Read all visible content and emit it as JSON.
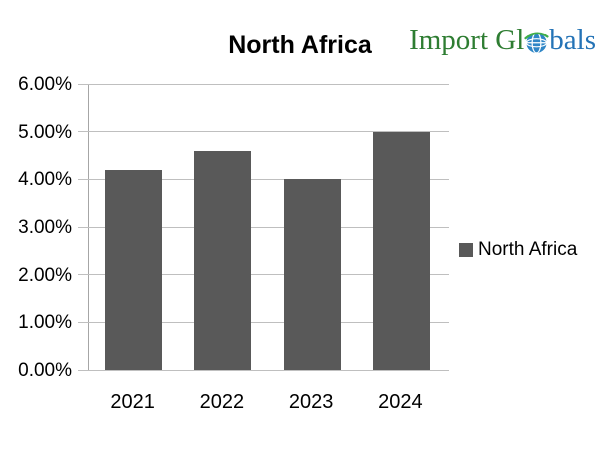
{
  "header": {
    "logo": {
      "text_before_globe": "Import Gl",
      "text_after_globe": "bals",
      "green_color": "#2e7d32",
      "blue_color": "#2473b6"
    }
  },
  "chart_data": {
    "type": "bar",
    "title": "North Africa",
    "categories": [
      "2021",
      "2022",
      "2023",
      "2024"
    ],
    "series": [
      {
        "name": "North Africa",
        "values": [
          4.2,
          4.6,
          4.0,
          5.0
        ]
      }
    ],
    "value_unit": "%",
    "ylim": [
      0,
      6
    ],
    "ytick_step": 1,
    "ytick_labels": [
      "0.00%",
      "1.00%",
      "2.00%",
      "3.00%",
      "4.00%",
      "5.00%",
      "6.00%"
    ],
    "grid": true,
    "legend_position": "right",
    "colors": {
      "bar": "#595959",
      "gridline": "#bfbfbf",
      "axis": "#a6a6a6",
      "text": "#000000",
      "background": "#ffffff"
    }
  }
}
